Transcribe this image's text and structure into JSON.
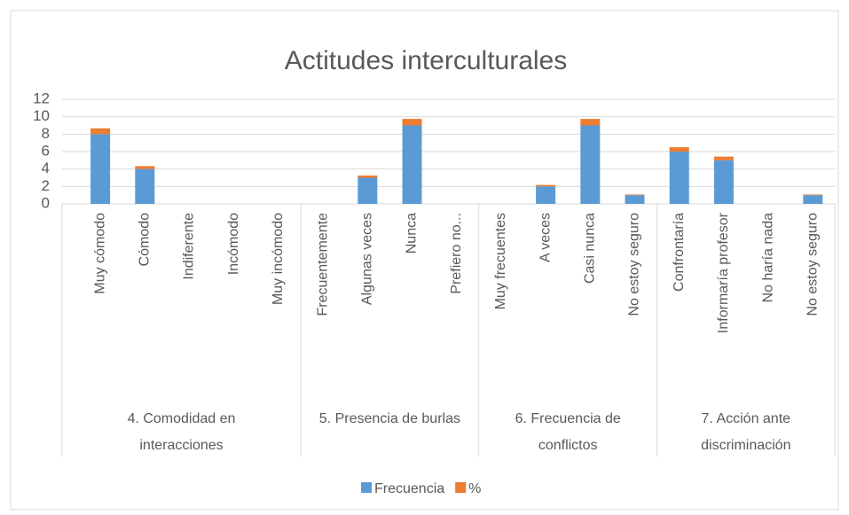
{
  "chart_data": {
    "type": "bar",
    "stacked": true,
    "title": "Actitudes interculturales",
    "groups": [
      {
        "label": "4. Comodidad en interacciones",
        "categories": [
          "Muy cómodo",
          "Cómodo",
          "Indiferente",
          "Incómodo",
          "Muy incómodo"
        ]
      },
      {
        "label": "5. Presencia de burlas",
        "categories": [
          "Frecuentemente",
          "Algunas veces",
          "Nunca",
          "Prefiero no..."
        ]
      },
      {
        "label": "6. Frecuencia de conflictos",
        "categories": [
          "Muy frecuentes",
          "A veces",
          "Casi nunca",
          "No estoy seguro"
        ]
      },
      {
        "label": "7. Acción ante discriminación",
        "categories": [
          "Confrontaría",
          "Informaría profesor",
          "No haría nada",
          "No estoy seguro"
        ]
      }
    ],
    "series": [
      {
        "name": "Frecuencia",
        "color": "#5b9bd5",
        "values": [
          8,
          4,
          0,
          0,
          0,
          0,
          3,
          9,
          0,
          0,
          2,
          9,
          1,
          6,
          5,
          0,
          1
        ]
      },
      {
        "name": "%",
        "color": "#ed7d31",
        "values": [
          0.67,
          0.33,
          0,
          0,
          0,
          0,
          0.25,
          0.75,
          0,
          0,
          0.17,
          0.75,
          0.08,
          0.5,
          0.42,
          0,
          0.08
        ]
      }
    ],
    "ylim": [
      0,
      12
    ],
    "yticks": [
      0,
      2,
      4,
      6,
      8,
      10,
      12
    ],
    "grid": true,
    "legend": "bottom"
  }
}
